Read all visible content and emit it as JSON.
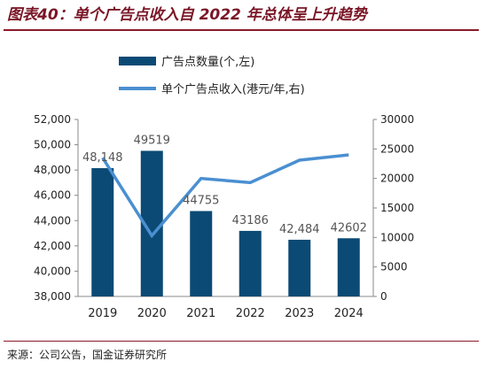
{
  "header": {
    "title": "图表40：单个广告点收入自 2022 年总体呈上升趋势"
  },
  "footer": {
    "source": "来源：公司公告，国金证券研究所"
  },
  "chart_data": {
    "type": "bar",
    "categories": [
      "2019",
      "2020",
      "2021",
      "2022",
      "2023",
      "2024"
    ],
    "series": [
      {
        "name": "广告点数量(个,左)",
        "type": "bar",
        "axis": "left",
        "color": "#0b4a74",
        "values": [
          48148,
          49519,
          44755,
          43186,
          42484,
          42602
        ],
        "labels": [
          "48,148",
          "49519",
          "44755",
          "43186",
          "42,484",
          "42602"
        ]
      },
      {
        "name": "单个广告点收入(港元/年,右)",
        "type": "line",
        "axis": "right",
        "color": "#4a8fd1",
        "values": [
          23500,
          10300,
          20000,
          19300,
          23100,
          24000
        ]
      }
    ],
    "y_left": {
      "lim": [
        38000,
        52000
      ],
      "ticks": [
        38000,
        40000,
        42000,
        44000,
        46000,
        48000,
        50000,
        52000
      ],
      "tick_labels": [
        "38,000",
        "40,000",
        "42,000",
        "44,000",
        "46,000",
        "48,000",
        "50,000",
        "52,000"
      ]
    },
    "y_right": {
      "lim": [
        0,
        30000
      ],
      "ticks": [
        0,
        5000,
        10000,
        15000,
        20000,
        25000,
        30000
      ],
      "tick_labels": [
        "0",
        "5000",
        "10000",
        "15000",
        "20000",
        "25000",
        "30000"
      ]
    },
    "grid": false,
    "legend": "top"
  }
}
